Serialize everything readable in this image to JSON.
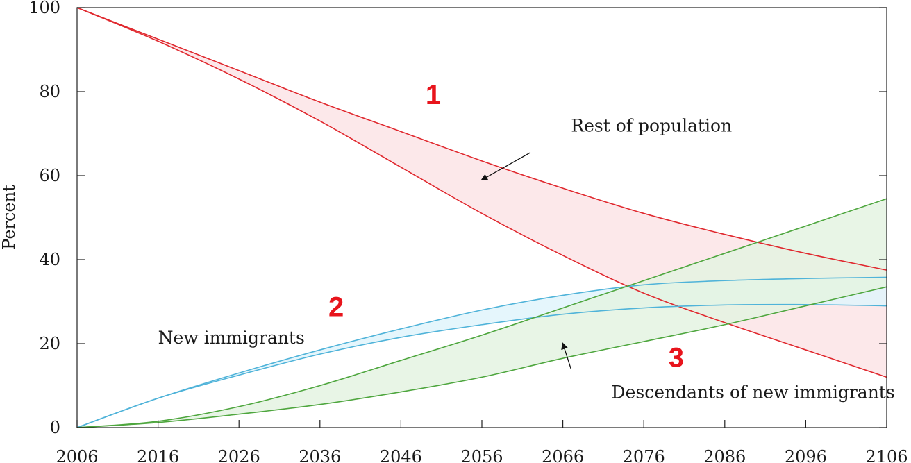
{
  "chart_data": {
    "type": "area",
    "xlabel": "",
    "ylabel": "Percent",
    "xlim": [
      2006,
      2106
    ],
    "ylim": [
      0,
      100
    ],
    "xticks": [
      2006,
      2016,
      2026,
      2036,
      2046,
      2056,
      2066,
      2076,
      2086,
      2096,
      2106
    ],
    "yticks": [
      0,
      20,
      40,
      60,
      80,
      100
    ],
    "grid": false,
    "series": [
      {
        "name": "Rest of population",
        "color": "#e0282e",
        "fill": "#fce4e6",
        "upper": {
          "x": [
            2006,
            2016,
            2026,
            2036,
            2046,
            2056,
            2066,
            2076,
            2086,
            2096,
            2106
          ],
          "y": [
            100,
            92.5,
            85,
            77.5,
            70.5,
            63.5,
            57,
            51,
            46,
            41.5,
            37.5
          ]
        },
        "lower": {
          "x": [
            2006,
            2016,
            2026,
            2036,
            2046,
            2056,
            2066,
            2076,
            2086,
            2096,
            2106
          ],
          "y": [
            100,
            92,
            83,
            73,
            62,
            51,
            41,
            32,
            25,
            18.5,
            12
          ]
        }
      },
      {
        "name": "New immigrants",
        "color": "#4fb3d9",
        "fill": "#e0f4fc",
        "upper": {
          "x": [
            2006,
            2016,
            2026,
            2036,
            2046,
            2056,
            2066,
            2076,
            2086,
            2096,
            2106
          ],
          "y": [
            0,
            7,
            13,
            18.5,
            23.5,
            28,
            31.5,
            34,
            35,
            35.5,
            35.8
          ]
        },
        "lower": {
          "x": [
            2006,
            2016,
            2026,
            2036,
            2046,
            2056,
            2066,
            2076,
            2086,
            2096,
            2106
          ],
          "y": [
            0,
            7,
            12.5,
            17.5,
            21.5,
            24.5,
            27,
            28.5,
            29.2,
            29.3,
            29
          ]
        }
      },
      {
        "name": "Descendants of new immigrants",
        "color": "#4ea63e",
        "fill": "#e4f3e2",
        "upper": {
          "x": [
            2006,
            2016,
            2026,
            2036,
            2046,
            2056,
            2066,
            2076,
            2086,
            2096,
            2106
          ],
          "y": [
            0,
            1.5,
            5,
            10,
            16,
            22,
            28.5,
            35,
            41.5,
            48,
            54.5
          ]
        },
        "lower": {
          "x": [
            2006,
            2016,
            2026,
            2036,
            2046,
            2056,
            2066,
            2076,
            2086,
            2096,
            2106
          ],
          "y": [
            0,
            1.2,
            3.2,
            5.5,
            8.5,
            12,
            16.5,
            20.5,
            24.5,
            29,
            33.5
          ]
        }
      }
    ],
    "annotations": [
      {
        "text": "Rest of population",
        "arrow_to": [
          2056,
          59
        ],
        "color": "#1a1a1a"
      },
      {
        "text": "New immigrants",
        "color": "#1a1a1a"
      },
      {
        "text": "Descendants of new immigrants",
        "arrow_to": [
          2066,
          20
        ],
        "color": "#1a1a1a"
      }
    ],
    "markers": [
      {
        "text": "1",
        "x": 2050,
        "y": 77,
        "color": "#e8141c"
      },
      {
        "text": "2",
        "x": 2038,
        "y": 26.5,
        "color": "#e8141c"
      },
      {
        "text": "3",
        "x": 2080,
        "y": 14.5,
        "color": "#e8141c"
      }
    ]
  }
}
